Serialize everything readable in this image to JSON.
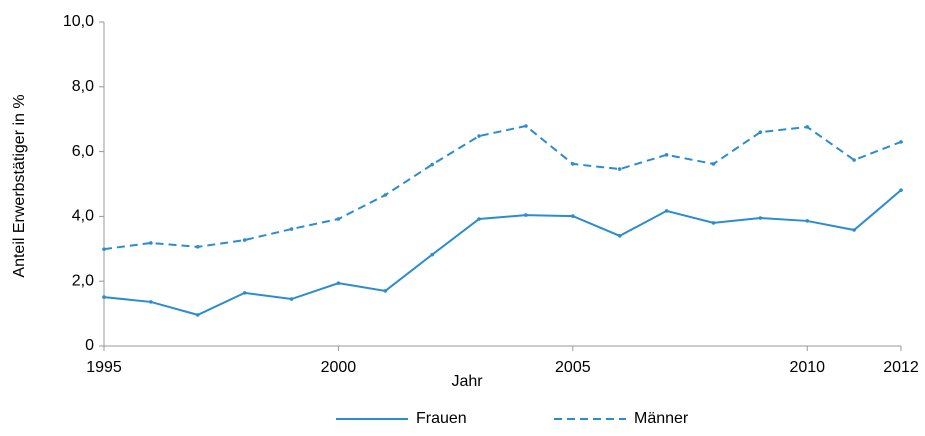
{
  "chart_data": {
    "type": "line",
    "x_label": "Jahr",
    "y_label": "Anteil Erwerbstätiger in %",
    "x": [
      1995,
      1996,
      1997,
      1998,
      1999,
      2000,
      2001,
      2002,
      2003,
      2004,
      2005,
      2006,
      2007,
      2008,
      2009,
      2010,
      2011,
      2012
    ],
    "xlim": [
      1995,
      2012
    ],
    "xticks": [
      1995,
      2000,
      2005,
      2010,
      2012
    ],
    "ylim": [
      0,
      10
    ],
    "yticks": [
      0,
      {
        "value": 2,
        "label": "2,0"
      },
      {
        "value": 4,
        "label": "4,0"
      },
      {
        "value": 6,
        "label": "6,0"
      },
      {
        "value": 8,
        "label": "8,0"
      },
      {
        "value": 10,
        "label": "10,0"
      }
    ],
    "grid": false,
    "legend": "bottom",
    "series": [
      {
        "name": "Frauen",
        "color": "#2b8cce",
        "dash": false,
        "values": [
          1.51,
          1.36,
          0.96,
          1.64,
          1.45,
          1.94,
          1.7,
          2.82,
          3.92,
          4.04,
          4.01,
          3.4,
          4.17,
          3.8,
          3.95,
          3.86,
          3.58,
          4.81
        ]
      },
      {
        "name": "Männer",
        "color": "#2b8cce",
        "dash": true,
        "values": [
          2.99,
          3.18,
          3.06,
          3.27,
          3.61,
          3.92,
          4.66,
          5.6,
          6.48,
          6.79,
          5.62,
          5.46,
          5.9,
          5.62,
          6.6,
          6.76,
          5.74,
          6.3
        ]
      }
    ]
  }
}
